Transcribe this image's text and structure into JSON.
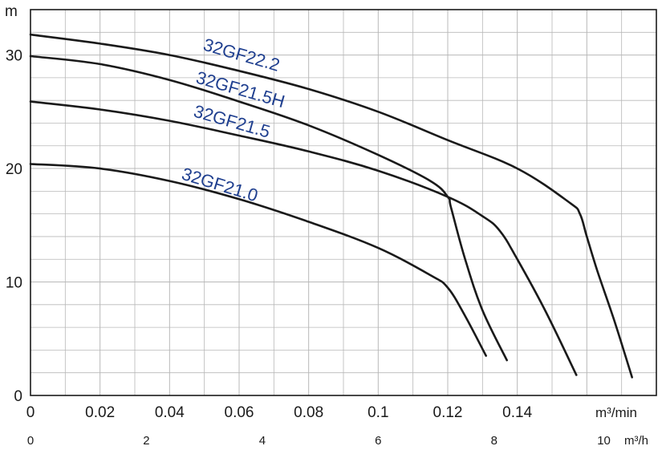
{
  "chart_data": {
    "type": "line",
    "y_unit": "m",
    "x_unit_top": "m³/min",
    "x_unit_bottom": "m³/h",
    "xlim": [
      0,
      0.18
    ],
    "ylim": [
      0,
      34
    ],
    "grid": true,
    "legend": "labels placed along each curve",
    "x_ticks_top": [
      "0",
      "0.02",
      "0.04",
      "0.06",
      "0.08",
      "0.1",
      "0.12",
      "0.14"
    ],
    "x_ticks_bottom": [
      "0",
      "2",
      "4",
      "6",
      "8",
      "10"
    ],
    "y_ticks": [
      "0",
      "10",
      "20",
      "30"
    ],
    "colors": {
      "curve": "#1a1a1a",
      "label": "#1f3f8f",
      "grid": "#b8b8b8"
    },
    "series": [
      {
        "name": "32GF22.2",
        "x": [
          0,
          0.02,
          0.04,
          0.06,
          0.08,
          0.1,
          0.12,
          0.14,
          0.155,
          0.158,
          0.16,
          0.163,
          0.168,
          0.173
        ],
        "y": [
          31.8,
          31.0,
          30.0,
          28.6,
          27.0,
          25.0,
          22.5,
          20.0,
          17.0,
          16.0,
          14.0,
          11.0,
          6.5,
          1.6
        ]
      },
      {
        "name": "32GF21.5H",
        "x": [
          0,
          0.02,
          0.04,
          0.06,
          0.08,
          0.1,
          0.115,
          0.12,
          0.121,
          0.125,
          0.13,
          0.137
        ],
        "y": [
          29.9,
          29.2,
          27.8,
          25.9,
          23.8,
          21.2,
          18.9,
          17.5,
          16.5,
          12.0,
          7.5,
          3.1
        ]
      },
      {
        "name": "32GF21.5",
        "x": [
          0,
          0.02,
          0.04,
          0.06,
          0.08,
          0.1,
          0.12,
          0.13,
          0.135,
          0.14,
          0.148,
          0.157
        ],
        "y": [
          25.9,
          25.2,
          24.2,
          22.9,
          21.5,
          19.8,
          17.5,
          15.8,
          14.5,
          12.0,
          7.5,
          1.8
        ]
      },
      {
        "name": "32GF21.0",
        "x": [
          0,
          0.02,
          0.04,
          0.06,
          0.08,
          0.1,
          0.115,
          0.12,
          0.125,
          0.131
        ],
        "y": [
          20.4,
          20.0,
          18.9,
          17.3,
          15.3,
          13.0,
          10.6,
          9.5,
          7.0,
          3.5
        ]
      }
    ]
  }
}
